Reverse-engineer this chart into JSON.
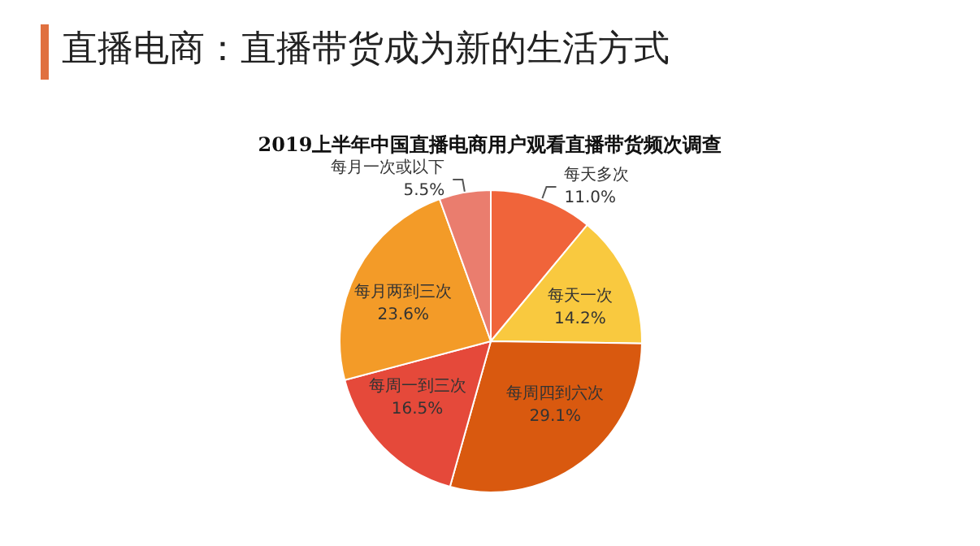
{
  "chart_data": {
    "type": "pie",
    "title": "直播电商：直播带货成为新的生活方式",
    "subtitle": "2019上半年中国直播电商用户观看直播带货频次调查",
    "categories": [
      "每天多次",
      "每天一次",
      "每周四到六次",
      "每周一到三次",
      "每月两到三次",
      "每月一次或以下"
    ],
    "values": [
      11.0,
      14.2,
      29.1,
      16.5,
      23.6,
      5.5
    ],
    "value_labels": [
      "11.0%",
      "14.2%",
      "29.1%",
      "16.5%",
      "23.6%",
      "5.5%"
    ],
    "colors": [
      "#f0643a",
      "#f9c93f",
      "#d9590f",
      "#e5493a",
      "#f39b28",
      "#ea7d6e"
    ],
    "legend": false
  }
}
